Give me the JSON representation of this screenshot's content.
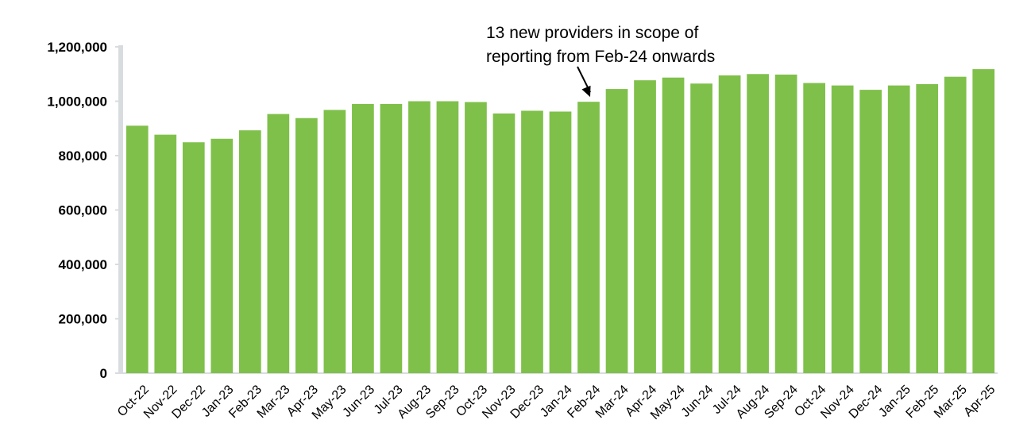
{
  "chart_data": {
    "type": "bar",
    "title": "",
    "xlabel": "",
    "ylabel": "",
    "ylim": [
      0,
      1200000
    ],
    "yticks": [
      0,
      200000,
      400000,
      600000,
      800000,
      1000000,
      1200000
    ],
    "ytick_labels": [
      "0",
      "200,000",
      "400,000",
      "600,000",
      "800,000",
      "1,000,000",
      "1,200,000"
    ],
    "grid": false,
    "bar_color": "#7fc04a",
    "categories": [
      "Oct-22",
      "Nov-22",
      "Dec-22",
      "Jan-23",
      "Feb-23",
      "Mar-23",
      "Apr-23",
      "May-23",
      "Jun-23",
      "Jul-23",
      "Aug-23",
      "Sep-23",
      "Oct-23",
      "Nov-23",
      "Dec-23",
      "Jan-24",
      "Feb-24",
      "Mar-24",
      "Apr-24",
      "May-24",
      "Jun-24",
      "Jul-24",
      "Aug-24",
      "Sep-24",
      "Oct-24",
      "Nov-24",
      "Dec-24",
      "Jan-25",
      "Feb-25",
      "Mar-25",
      "Apr-25"
    ],
    "values": [
      910000,
      877000,
      849000,
      862000,
      893000,
      953000,
      938000,
      968000,
      990000,
      990000,
      1000000,
      1000000,
      997000,
      955000,
      965000,
      962000,
      998000,
      1045000,
      1077000,
      1087000,
      1065000,
      1095000,
      1100000,
      1098000,
      1067000,
      1058000,
      1042000,
      1058000,
      1063000,
      1090000,
      1118000
    ],
    "annotations": [
      {
        "lines": [
          "13 new providers in scope of",
          "reporting from Feb-24 onwards"
        ],
        "target_category": "Feb-24"
      }
    ]
  }
}
